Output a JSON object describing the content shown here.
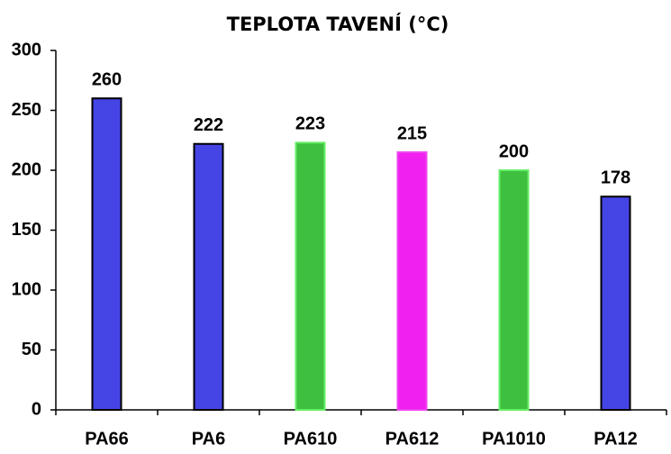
{
  "chart_data": {
    "type": "bar",
    "title": "TEPLOTA TAVENÍ (°C)",
    "categories": [
      "PA66",
      "PA6",
      "PA610",
      "PA612",
      "PA1010",
      "PA12"
    ],
    "values": [
      260,
      222,
      223,
      215,
      200,
      178
    ],
    "colors": [
      "#4545e6",
      "#4545e6",
      "#3fbf3f",
      "#f020f0",
      "#3fbf3f",
      "#4545e6"
    ],
    "edgecolors": [
      "#000000",
      "#000000",
      "#66ee66",
      "#ee44ee",
      "#66ee66",
      "#000000"
    ],
    "ylim": [
      0,
      300
    ],
    "yticks": [
      0,
      50,
      100,
      150,
      200,
      250,
      300
    ],
    "grid": false
  }
}
